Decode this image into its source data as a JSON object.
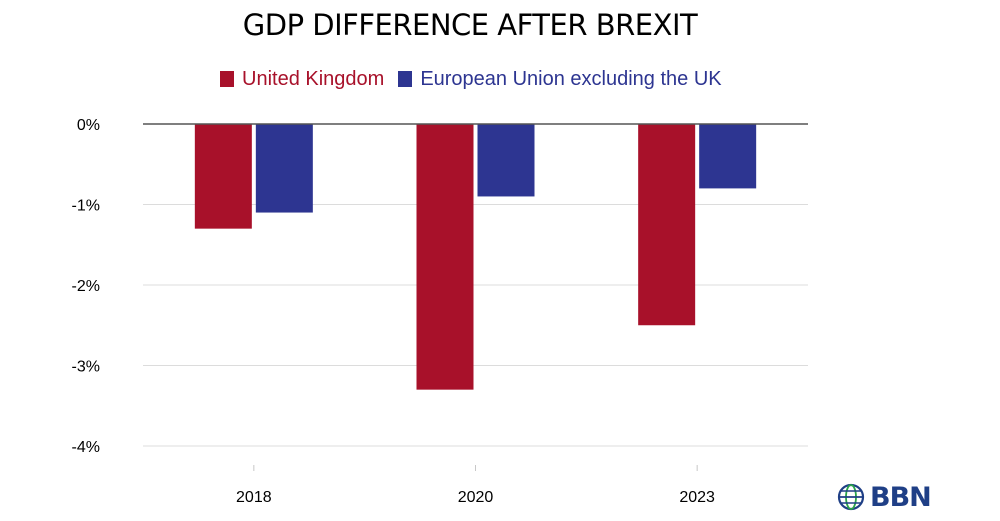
{
  "chart_data": {
    "type": "bar",
    "title": "GDP DIFFERENCE AFTER BREXIT",
    "categories": [
      "2018",
      "2020",
      "2023"
    ],
    "series": [
      {
        "name": "United Kingdom",
        "color": "#a8112a",
        "values": [
          -1.3,
          -3.3,
          -2.5
        ]
      },
      {
        "name": "European Union excluding the UK",
        "color": "#2d3591",
        "values": [
          -1.1,
          -0.9,
          -0.8
        ]
      }
    ],
    "ylim": [
      -4,
      0
    ],
    "yticks": [
      {
        "value": 0,
        "label": "0%"
      },
      {
        "value": -1,
        "label": "-1%"
      },
      {
        "value": -2,
        "label": "-2%"
      },
      {
        "value": -3,
        "label": "-3%"
      },
      {
        "value": -4,
        "label": "-4%"
      }
    ],
    "xlabel": "",
    "ylabel": "",
    "grid": true,
    "legend_position": "top"
  },
  "logo": {
    "text": "BBN",
    "icon": "globe-icon",
    "color": "#1f3f86"
  }
}
